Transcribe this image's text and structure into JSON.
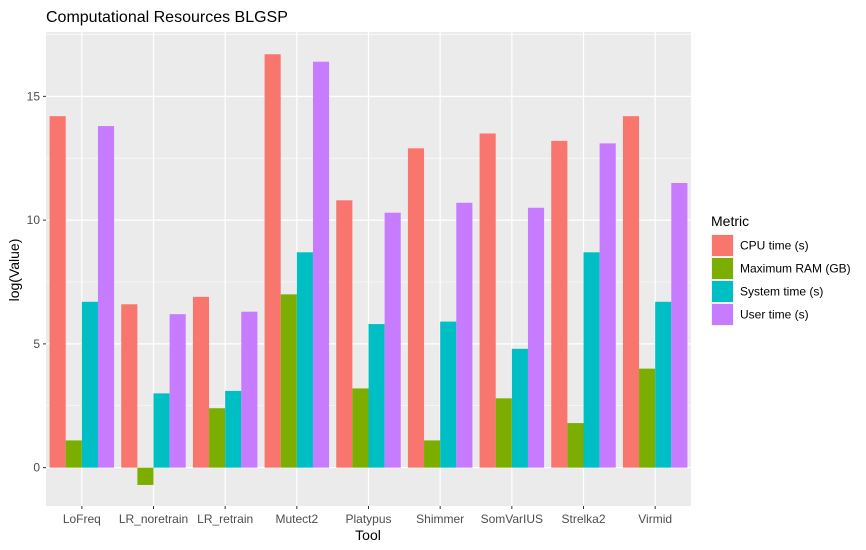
{
  "chart_data": {
    "type": "bar",
    "title": "Computational Resources BLGSP",
    "xlabel": "Tool",
    "ylabel": "log(Value)",
    "ylim": [
      -1.55,
      17.6
    ],
    "yticks": [
      0,
      5,
      10,
      15
    ],
    "grid": true,
    "legend_position": "right",
    "legend_title": "Metric",
    "categories": [
      "LoFreq",
      "LR_noretrain",
      "LR_retrain",
      "Mutect2",
      "Platypus",
      "Shimmer",
      "SomVarIUS",
      "Strelka2",
      "Virmid"
    ],
    "series": [
      {
        "name": "CPU time (s)",
        "color": "#F8766D",
        "values": [
          14.2,
          6.6,
          6.9,
          16.7,
          10.8,
          12.9,
          13.5,
          13.2,
          14.2
        ]
      },
      {
        "name": "Maximum RAM (GB)",
        "color": "#7CAE00",
        "values": [
          1.1,
          -0.7,
          2.4,
          7.0,
          3.2,
          1.1,
          2.8,
          1.8,
          4.0
        ]
      },
      {
        "name": "System time (s)",
        "color": "#00BFC4",
        "values": [
          6.7,
          3.0,
          3.1,
          8.7,
          5.8,
          5.9,
          4.8,
          8.7,
          6.7
        ]
      },
      {
        "name": "User time (s)",
        "color": "#C77CFF",
        "values": [
          13.8,
          6.2,
          6.3,
          16.4,
          10.3,
          10.7,
          10.5,
          13.1,
          11.5
        ]
      }
    ]
  }
}
